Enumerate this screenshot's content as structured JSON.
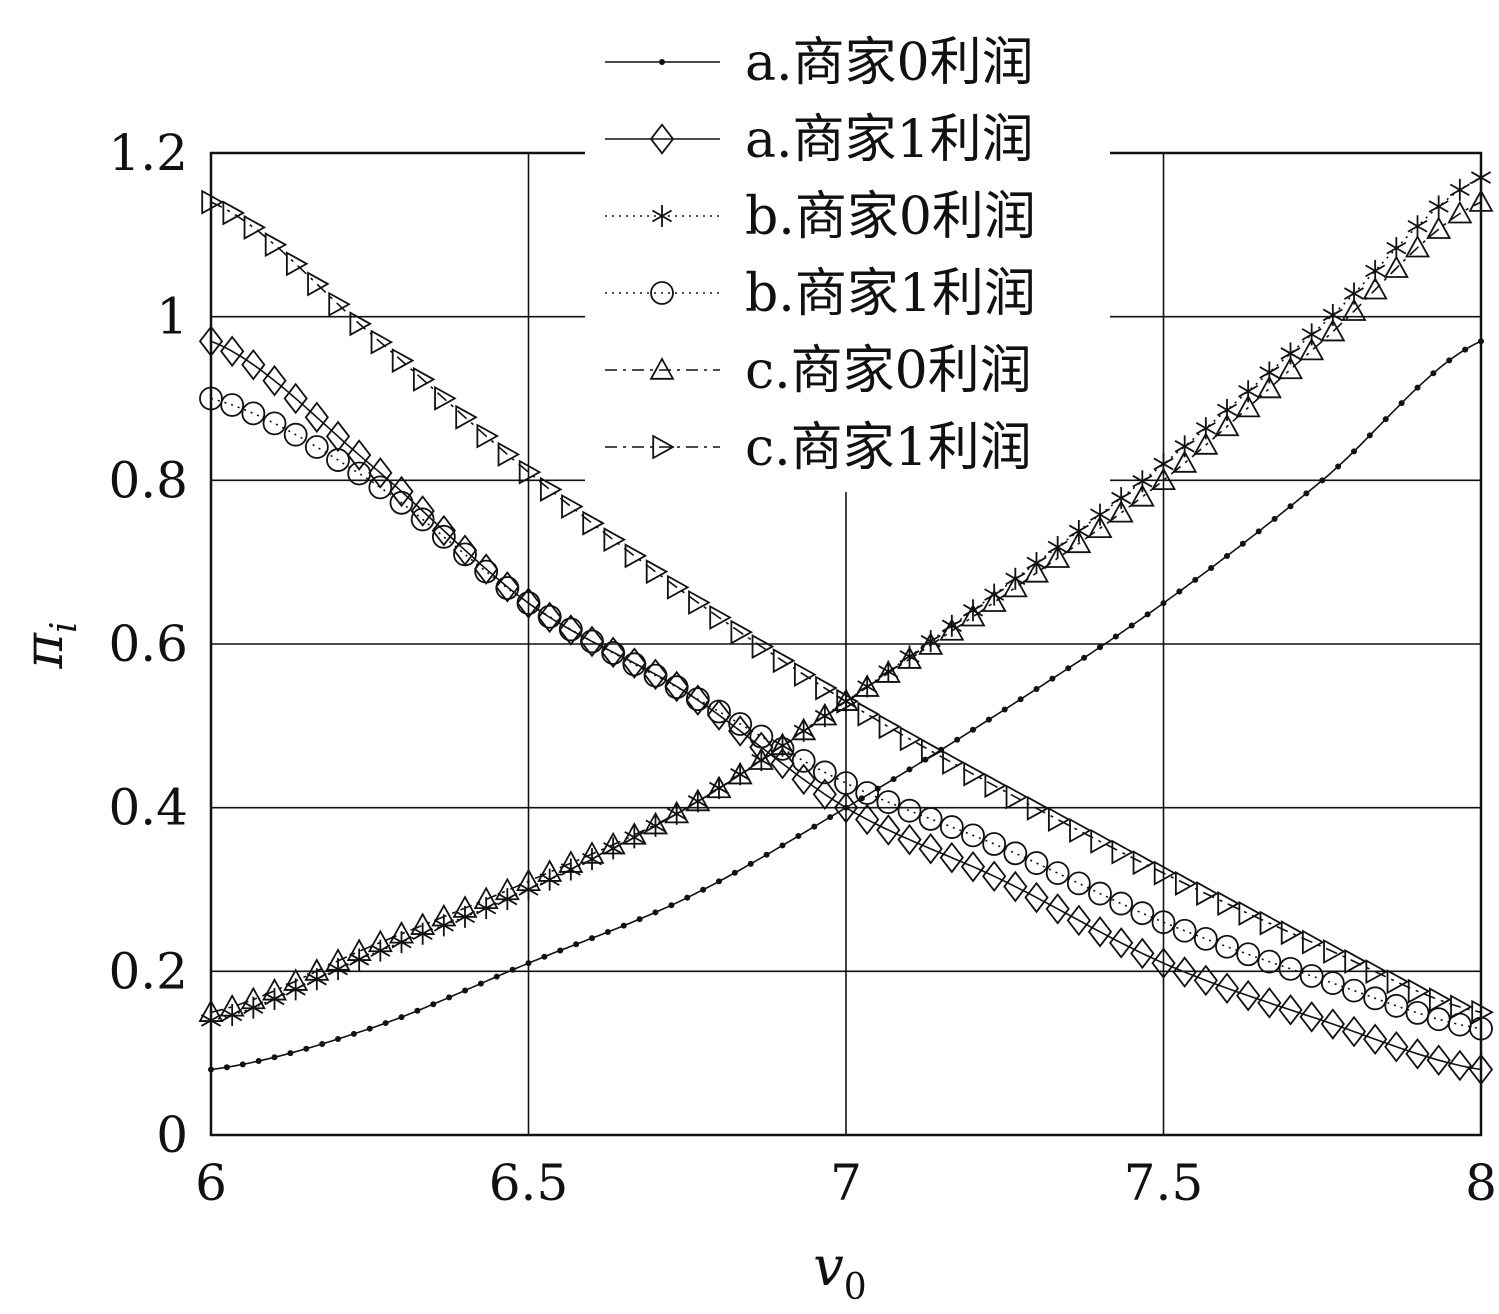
{
  "chart_data": {
    "type": "line",
    "title": "",
    "xlabel": "v",
    "xlabel_sub": "0",
    "ylabel": "π",
    "ylabel_sub": "i",
    "xlim": [
      6,
      8
    ],
    "ylim": [
      0,
      1.2
    ],
    "xticks": [
      6,
      6.5,
      7,
      7.5,
      8
    ],
    "xtick_labels": [
      "6",
      "6.5",
      "7",
      "7.5",
      "8"
    ],
    "yticks": [
      0,
      0.2,
      0.4,
      0.6,
      0.8,
      1,
      1.2
    ],
    "ytick_labels": [
      "0",
      "0.2",
      "0.4",
      "0.6",
      "0.8",
      "1",
      "1.2"
    ],
    "grid": true,
    "legend_position": "top-center",
    "x": [
      6.0,
      6.25,
      6.5,
      6.75,
      7.0,
      7.25,
      7.5,
      7.75,
      8.0
    ],
    "series": [
      {
        "name": "a.商家0利润",
        "line": "solid",
        "marker": "dot",
        "values": [
          0.08,
          0.13,
          0.21,
          0.29,
          0.4,
          0.52,
          0.65,
          0.8,
          0.97
        ]
      },
      {
        "name": "a.商家1利润",
        "line": "solid",
        "marker": "diamond",
        "values": [
          0.97,
          0.82,
          0.65,
          0.54,
          0.4,
          0.31,
          0.21,
          0.14,
          0.08
        ]
      },
      {
        "name": "b.商家0利润",
        "line": "dotted",
        "marker": "star",
        "values": [
          0.14,
          0.22,
          0.3,
          0.4,
          0.53,
          0.67,
          0.82,
          0.99,
          1.17
        ]
      },
      {
        "name": "b.商家1利润",
        "line": "dotted",
        "marker": "circle",
        "values": [
          0.9,
          0.8,
          0.65,
          0.54,
          0.43,
          0.35,
          0.26,
          0.19,
          0.13
        ]
      },
      {
        "name": "c.商家0利润",
        "line": "dashdot",
        "marker": "triangle-up",
        "values": [
          0.15,
          0.23,
          0.31,
          0.4,
          0.53,
          0.66,
          0.8,
          0.97,
          1.14
        ]
      },
      {
        "name": "c.商家1利润",
        "line": "dashdot",
        "marker": "triangle-right",
        "values": [
          1.14,
          0.98,
          0.81,
          0.66,
          0.53,
          0.42,
          0.32,
          0.23,
          0.15
        ]
      }
    ]
  }
}
